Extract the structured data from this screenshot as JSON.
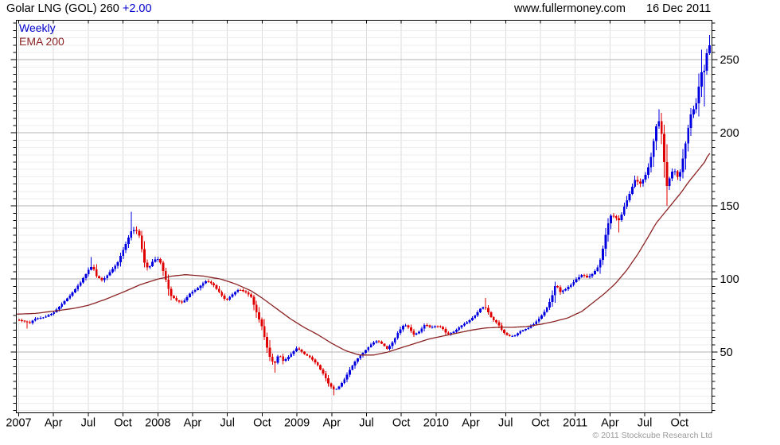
{
  "header": {
    "title": "Golar LNG (GOL)",
    "price": "260",
    "change": "+2.00",
    "website": "www.fullermoney.com",
    "date": "16 Dec 2011"
  },
  "legend": {
    "timeframe": "Weekly",
    "overlay": "EMA 200"
  },
  "footer": {
    "copyright": "© 2011 Stockcube Research Ltd"
  },
  "colors": {
    "up_candle": "#0000e0",
    "down_candle": "#e00000",
    "ema_line": "#8b2323",
    "accent_blue": "#0000cc",
    "grid_minor": "#ececec",
    "grid_major": "#b3b3b3",
    "grid_vertical": "#dcdcdc",
    "axis": "#000000",
    "muted_text": "#9a9a9a"
  },
  "chart_data": {
    "type": "candlestick",
    "timeframe": "weekly",
    "title": "Golar LNG (GOL) weekly candlestick chart with 200-period EMA",
    "last_close": 260,
    "change": "+2.00",
    "x_axis": {
      "range": [
        2006.983,
        2011.983
      ],
      "labels": [
        {
          "label": "2007",
          "t": 2007.0
        },
        {
          "label": "Apr",
          "t": 2007.25
        },
        {
          "label": "Jul",
          "t": 2007.5
        },
        {
          "label": "Oct",
          "t": 2007.75
        },
        {
          "label": "2008",
          "t": 2008.0
        },
        {
          "label": "Apr",
          "t": 2008.25
        },
        {
          "label": "Jul",
          "t": 2008.5
        },
        {
          "label": "Oct",
          "t": 2008.75
        },
        {
          "label": "2009",
          "t": 2009.0
        },
        {
          "label": "Apr",
          "t": 2009.25
        },
        {
          "label": "Jul",
          "t": 2009.5
        },
        {
          "label": "Oct",
          "t": 2009.75
        },
        {
          "label": "2010",
          "t": 2010.0
        },
        {
          "label": "Apr",
          "t": 2010.25
        },
        {
          "label": "Jul",
          "t": 2010.5
        },
        {
          "label": "Oct",
          "t": 2010.75
        },
        {
          "label": "2011",
          "t": 2011.0
        },
        {
          "label": "Apr",
          "t": 2011.25
        },
        {
          "label": "Jul",
          "t": 2011.5
        },
        {
          "label": "Oct",
          "t": 2011.75
        }
      ],
      "gridline_step_years": 0.25
    },
    "y_axis": {
      "ticks": [
        50,
        100,
        150,
        200,
        250
      ],
      "minor_step": 5,
      "range": [
        8.5,
        277
      ]
    },
    "price_path": [
      [
        2007.0,
        72
      ],
      [
        2007.04,
        71
      ],
      [
        2007.08,
        70
      ],
      [
        2007.12,
        73
      ],
      [
        2007.19,
        74
      ],
      [
        2007.25,
        77
      ],
      [
        2007.31,
        83
      ],
      [
        2007.37,
        89
      ],
      [
        2007.44,
        97
      ],
      [
        2007.5,
        106
      ],
      [
        2007.53,
        109
      ],
      [
        2007.56,
        102
      ],
      [
        2007.6,
        99
      ],
      [
        2007.65,
        104
      ],
      [
        2007.71,
        111
      ],
      [
        2007.77,
        124
      ],
      [
        2007.81,
        133
      ],
      [
        2007.84,
        134
      ],
      [
        2007.87,
        129
      ],
      [
        2007.9,
        112
      ],
      [
        2007.93,
        107
      ],
      [
        2007.97,
        113
      ],
      [
        2008.01,
        114
      ],
      [
        2008.05,
        102
      ],
      [
        2008.09,
        89
      ],
      [
        2008.14,
        85
      ],
      [
        2008.18,
        84
      ],
      [
        2008.23,
        90
      ],
      [
        2008.29,
        94
      ],
      [
        2008.35,
        99
      ],
      [
        2008.4,
        96
      ],
      [
        2008.45,
        90
      ],
      [
        2008.49,
        85
      ],
      [
        2008.53,
        89
      ],
      [
        2008.58,
        93
      ],
      [
        2008.63,
        91
      ],
      [
        2008.67,
        88
      ],
      [
        2008.71,
        77
      ],
      [
        2008.75,
        67
      ],
      [
        2008.78,
        55
      ],
      [
        2008.81,
        45
      ],
      [
        2008.84,
        42
      ],
      [
        2008.87,
        49
      ],
      [
        2008.9,
        44
      ],
      [
        2008.93,
        46
      ],
      [
        2008.97,
        50
      ],
      [
        2009.0,
        53
      ],
      [
        2009.05,
        49
      ],
      [
        2009.1,
        46
      ],
      [
        2009.15,
        41
      ],
      [
        2009.19,
        35
      ],
      [
        2009.23,
        28
      ],
      [
        2009.27,
        24
      ],
      [
        2009.3,
        26
      ],
      [
        2009.34,
        31
      ],
      [
        2009.38,
        38
      ],
      [
        2009.42,
        44
      ],
      [
        2009.46,
        48
      ],
      [
        2009.5,
        52
      ],
      [
        2009.54,
        56
      ],
      [
        2009.58,
        58
      ],
      [
        2009.62,
        55
      ],
      [
        2009.65,
        52
      ],
      [
        2009.69,
        57
      ],
      [
        2009.73,
        64
      ],
      [
        2009.77,
        69
      ],
      [
        2009.8,
        67
      ],
      [
        2009.84,
        62
      ],
      [
        2009.88,
        64
      ],
      [
        2009.92,
        69
      ],
      [
        2009.96,
        67
      ],
      [
        2010.0,
        68
      ],
      [
        2010.04,
        67
      ],
      [
        2010.08,
        62
      ],
      [
        2010.13,
        64
      ],
      [
        2010.18,
        68
      ],
      [
        2010.23,
        71
      ],
      [
        2010.28,
        75
      ],
      [
        2010.33,
        81
      ],
      [
        2010.36,
        80
      ],
      [
        2010.4,
        73
      ],
      [
        2010.44,
        70
      ],
      [
        2010.48,
        64
      ],
      [
        2010.52,
        61
      ],
      [
        2010.56,
        61
      ],
      [
        2010.6,
        64
      ],
      [
        2010.65,
        66
      ],
      [
        2010.7,
        69
      ],
      [
        2010.75,
        74
      ],
      [
        2010.79,
        79
      ],
      [
        2010.83,
        87
      ],
      [
        2010.86,
        97
      ],
      [
        2010.89,
        91
      ],
      [
        2010.93,
        93
      ],
      [
        2010.97,
        96
      ],
      [
        2011.01,
        100
      ],
      [
        2011.05,
        103
      ],
      [
        2011.09,
        101
      ],
      [
        2011.13,
        104
      ],
      [
        2011.17,
        109
      ],
      [
        2011.2,
        121
      ],
      [
        2011.23,
        136
      ],
      [
        2011.26,
        144
      ],
      [
        2011.29,
        142
      ],
      [
        2011.32,
        140
      ],
      [
        2011.35,
        149
      ],
      [
        2011.39,
        158
      ],
      [
        2011.43,
        168
      ],
      [
        2011.47,
        165
      ],
      [
        2011.51,
        172
      ],
      [
        2011.54,
        181
      ],
      [
        2011.57,
        198
      ],
      [
        2011.595,
        211
      ],
      [
        2011.62,
        200
      ],
      [
        2011.64,
        180
      ],
      [
        2011.66,
        163
      ],
      [
        2011.685,
        171
      ],
      [
        2011.71,
        176
      ],
      [
        2011.73,
        169
      ],
      [
        2011.76,
        174
      ],
      [
        2011.78,
        186
      ],
      [
        2011.8,
        196
      ],
      [
        2011.82,
        208
      ],
      [
        2011.845,
        218
      ],
      [
        2011.86,
        213
      ],
      [
        2011.875,
        224
      ],
      [
        2011.89,
        232
      ],
      [
        2011.905,
        243
      ],
      [
        2011.92,
        236
      ],
      [
        2011.935,
        249
      ],
      [
        2011.95,
        256
      ],
      [
        2011.962,
        260
      ]
    ],
    "ema_path": [
      [
        2006.99,
        76
      ],
      [
        2007.12,
        76.5
      ],
      [
        2007.25,
        78
      ],
      [
        2007.4,
        80
      ],
      [
        2007.5,
        82
      ],
      [
        2007.62,
        86
      ],
      [
        2007.75,
        91
      ],
      [
        2007.87,
        96
      ],
      [
        2008.0,
        100
      ],
      [
        2008.1,
        102
      ],
      [
        2008.2,
        103
      ],
      [
        2008.33,
        102
      ],
      [
        2008.45,
        100
      ],
      [
        2008.55,
        97
      ],
      [
        2008.67,
        92
      ],
      [
        2008.75,
        87
      ],
      [
        2008.85,
        80
      ],
      [
        2008.95,
        73
      ],
      [
        2009.05,
        67
      ],
      [
        2009.15,
        62
      ],
      [
        2009.25,
        56
      ],
      [
        2009.35,
        51
      ],
      [
        2009.45,
        48
      ],
      [
        2009.55,
        48
      ],
      [
        2009.65,
        50
      ],
      [
        2009.75,
        53
      ],
      [
        2009.85,
        56
      ],
      [
        2009.95,
        59
      ],
      [
        2010.05,
        61
      ],
      [
        2010.15,
        63
      ],
      [
        2010.25,
        65
      ],
      [
        2010.35,
        66.5
      ],
      [
        2010.45,
        67
      ],
      [
        2010.55,
        67
      ],
      [
        2010.65,
        67.5
      ],
      [
        2010.75,
        69
      ],
      [
        2010.85,
        71
      ],
      [
        2010.95,
        73.5
      ],
      [
        2011.05,
        78
      ],
      [
        2011.13,
        84
      ],
      [
        2011.21,
        90
      ],
      [
        2011.29,
        97
      ],
      [
        2011.37,
        106
      ],
      [
        2011.45,
        117
      ],
      [
        2011.52,
        128
      ],
      [
        2011.58,
        138
      ],
      [
        2011.64,
        145
      ],
      [
        2011.7,
        152
      ],
      [
        2011.76,
        159
      ],
      [
        2011.82,
        167
      ],
      [
        2011.88,
        174
      ],
      [
        2011.93,
        180
      ],
      [
        2011.962,
        186
      ]
    ],
    "wick_extremes": [
      [
        2007.07,
        66,
        "low"
      ],
      [
        2007.52,
        115,
        "high"
      ],
      [
        2007.81,
        146,
        "high"
      ],
      [
        2008.84,
        36,
        "low"
      ],
      [
        2009.27,
        20.5,
        "low"
      ],
      [
        2010.35,
        87,
        "high"
      ],
      [
        2011.31,
        132,
        "low"
      ],
      [
        2011.6,
        216,
        "high"
      ],
      [
        2011.65,
        150,
        "low"
      ],
      [
        2011.905,
        257,
        "high"
      ],
      [
        2011.92,
        218,
        "low"
      ],
      [
        2011.962,
        267,
        "high"
      ]
    ]
  }
}
